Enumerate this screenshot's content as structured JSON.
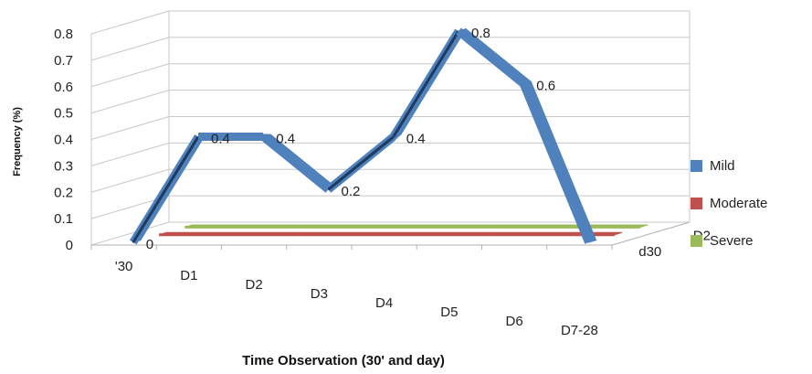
{
  "chart_data": {
    "type": "line",
    "style": "3d",
    "title": "",
    "xlabel": "Time Observation (30' and day)",
    "ylabel": "Frequency (%)",
    "ylim": [
      0,
      0.8
    ],
    "y_ticks": [
      "0",
      "0.1",
      "0.2",
      "0.3",
      "0.4",
      "0.5",
      "0.6",
      "0.7",
      "0.8"
    ],
    "categories": [
      "'30",
      "D1",
      "D2",
      "D3",
      "D4",
      "D5",
      "D6",
      "D7-28"
    ],
    "depth_labels": [
      "d30",
      "D2"
    ],
    "series": [
      {
        "name": "Mild",
        "color": "#4f81bd",
        "values": [
          0,
          0.4,
          0.4,
          0.2,
          0.4,
          0.8,
          0.6,
          0
        ],
        "labels": [
          "0",
          "0.4",
          "0.4",
          "0.2",
          "0.4",
          "0.8",
          "0.6",
          ""
        ]
      },
      {
        "name": "Moderate",
        "color": "#c0504d",
        "values": [
          0,
          0,
          0,
          0,
          0,
          0,
          0,
          0
        ]
      },
      {
        "name": "Severe",
        "color": "#9bbb59",
        "values": [
          0,
          0,
          0,
          0,
          0,
          0,
          0,
          0
        ]
      }
    ],
    "legend_position": "right",
    "grid": true
  }
}
